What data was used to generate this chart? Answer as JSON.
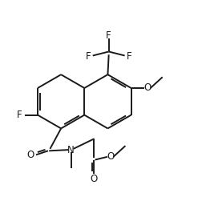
{
  "bg_color": "#ffffff",
  "line_color": "#1a1a1a",
  "figsize": [
    2.52,
    2.76
  ],
  "dpi": 100,
  "lw": 1.4,
  "fs": 8.5,
  "ring_r": 0.135,
  "lrc": [
    0.3,
    0.545
  ],
  "rrc": [
    0.534,
    0.545
  ]
}
